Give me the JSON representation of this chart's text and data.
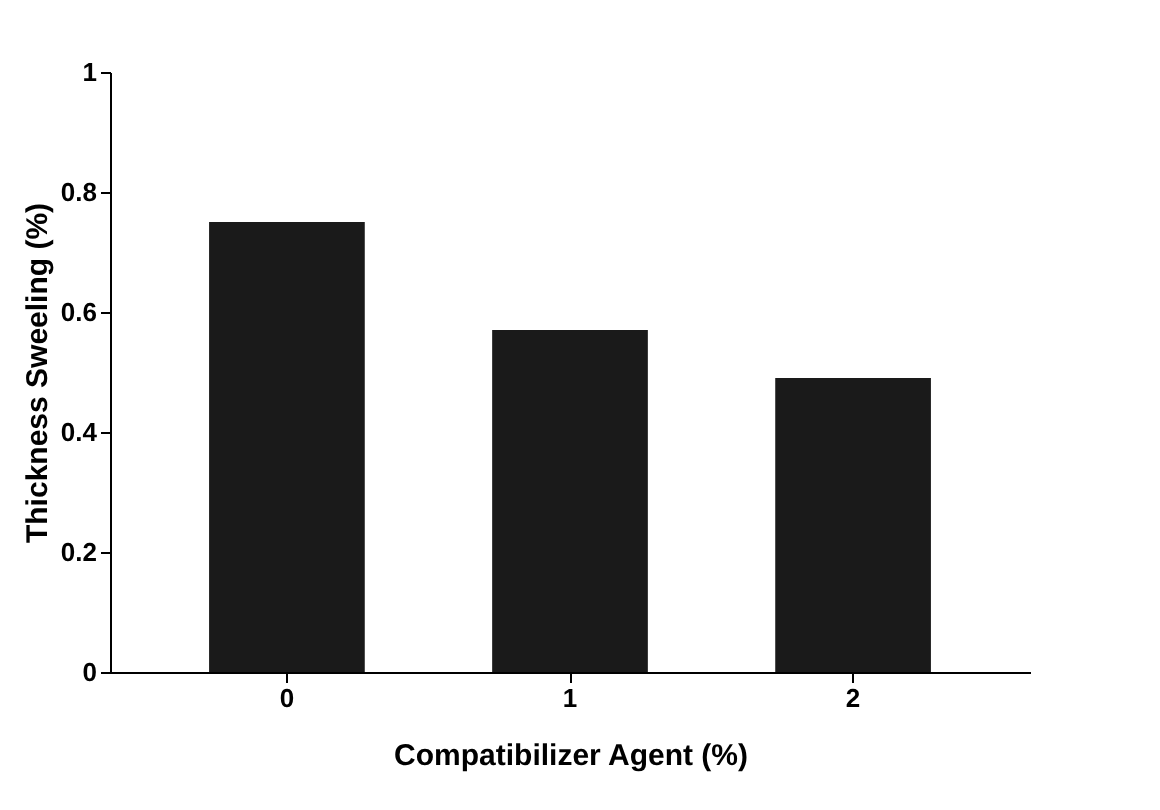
{
  "chart_data": {
    "type": "bar",
    "xlabel": "Compatibilizer Agent (%)",
    "ylabel": "Thickness Sweeling (%)",
    "categories": [
      "0",
      "1",
      "2"
    ],
    "values": [
      0.75,
      0.57,
      0.49
    ],
    "color": "#1a1a1a",
    "ylim": [
      0,
      1
    ],
    "yticks": [
      0,
      0.2,
      0.4,
      0.6,
      0.8,
      1
    ],
    "grid": false
  }
}
